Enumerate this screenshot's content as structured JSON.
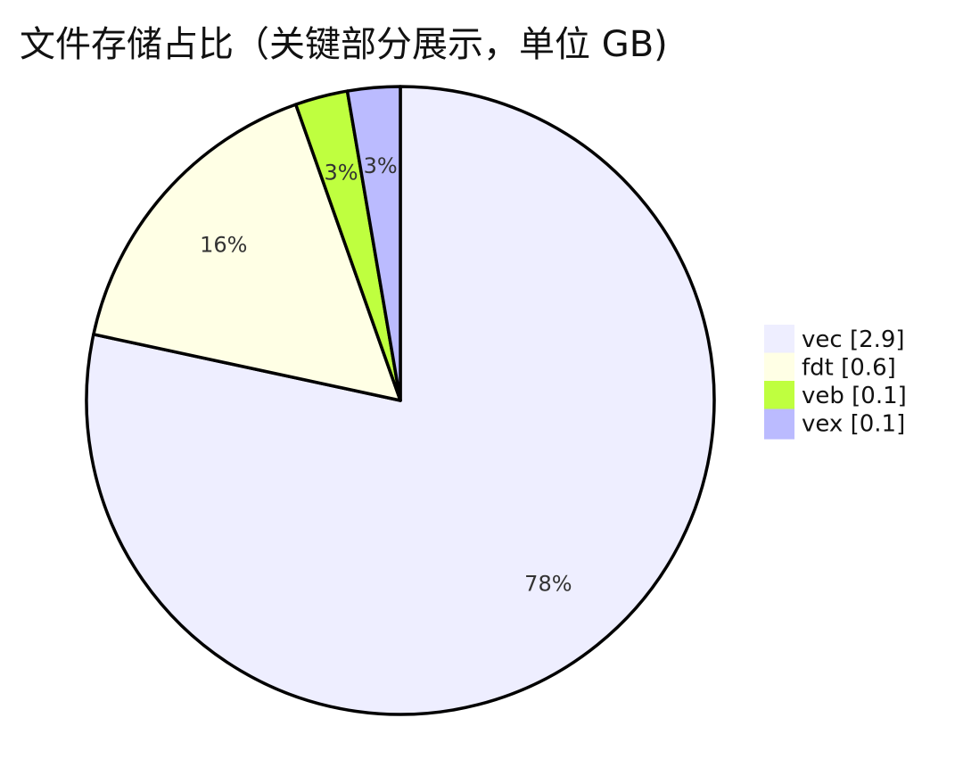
{
  "chart_data": {
    "type": "pie",
    "title": "文件存储占比（关键部分展示，单位 GB)",
    "categories": [
      "vec",
      "fdt",
      "veb",
      "vex"
    ],
    "values": [
      2.9,
      0.6,
      0.1,
      0.1
    ],
    "legend_labels": [
      "vec [2.9]",
      "fdt [0.6]",
      "veb [0.1]",
      "vex [0.1]"
    ],
    "slice_labels": [
      "78%",
      "16%",
      "3%",
      "3%"
    ],
    "colors": [
      "#eeeeff",
      "#ffffe5",
      "#bfff3f",
      "#bbbbff"
    ],
    "legend_position": "right"
  }
}
